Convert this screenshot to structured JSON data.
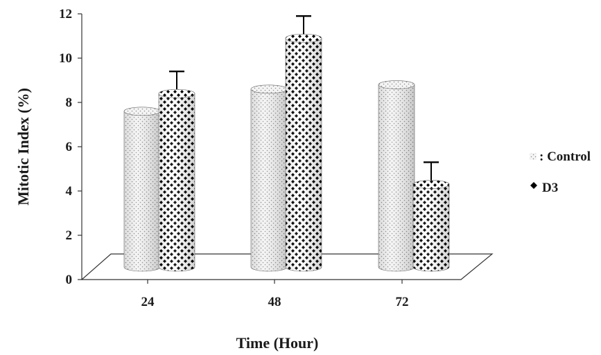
{
  "chart_data": {
    "type": "bar",
    "categories": [
      "24",
      "48",
      "72"
    ],
    "series": [
      {
        "name": "Control",
        "values": [
          7.6,
          8.6,
          8.8
        ],
        "errors": [
          0,
          0,
          0
        ],
        "pattern": "dots"
      },
      {
        "name": "D3",
        "values": [
          8.4,
          10.9,
          4.3
        ],
        "errors": [
          1.0,
          1.0,
          1.0
        ],
        "pattern": "checker"
      }
    ],
    "xlabel": "Time (Hour)",
    "ylabel": "Mitotic Index (%)",
    "ylim": [
      0,
      12
    ],
    "yticks": [
      "0",
      "2",
      "4",
      "6",
      "8",
      "10",
      "12"
    ],
    "grid": false,
    "legend": {
      "position": "right",
      "entries": [
        "Control",
        "D3"
      ]
    },
    "style": "3d-cylinder"
  }
}
